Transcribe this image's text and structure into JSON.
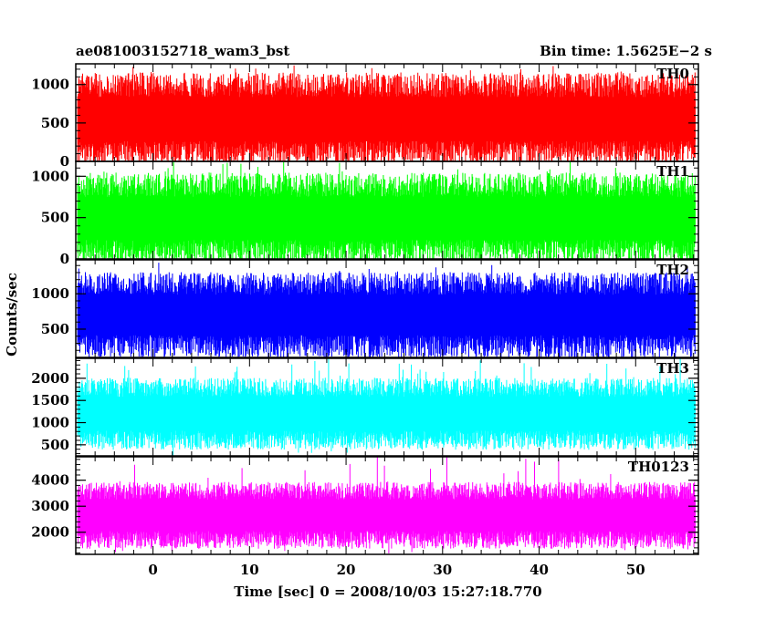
{
  "chart_data": {
    "type": "line",
    "title_left": "ae081003152718_wam3_bst",
    "title_right": "Bin time: 1.5625E−2 s",
    "xlabel": "Time [sec] 0 = 2008/10/03 15:27:18.770",
    "ylabel": "Counts/sec",
    "xlim": [
      -8,
      56.5
    ],
    "x_data_range": [
      -7.8,
      56.2
    ],
    "x_ticks": [
      0,
      10,
      20,
      30,
      40,
      50
    ],
    "x_tick_labels": [
      "0",
      "10",
      "20",
      "30",
      "40",
      "50"
    ],
    "grid": false,
    "panels": [
      {
        "name": "TH0",
        "color": "#ff0000",
        "ylim": [
          0,
          1270
        ],
        "y_ticks": [
          0,
          500,
          1000
        ],
        "y_tick_labels": [
          "0",
          "500",
          "1000"
        ],
        "typical_range": [
          100,
          1000
        ],
        "min": 0,
        "max": 1270,
        "median": 560
      },
      {
        "name": "TH1",
        "color": "#00ff00",
        "ylim": [
          0,
          1180
        ],
        "y_ticks": [
          0,
          500,
          1000
        ],
        "y_tick_labels": [
          "0",
          "500",
          "1000"
        ],
        "typical_range": [
          80,
          900
        ],
        "min": 0,
        "max": 1180,
        "median": 480
      },
      {
        "name": "TH2",
        "color": "#0000ff",
        "ylim": [
          100,
          1480
        ],
        "y_ticks": [
          500,
          1000
        ],
        "y_tick_labels": [
          "500",
          "1000"
        ],
        "typical_range": [
          250,
          1150
        ],
        "min": 100,
        "max": 1480,
        "median": 700
      },
      {
        "name": "TH3",
        "color": "#00ffff",
        "ylim": [
          250,
          2450
        ],
        "y_ticks": [
          500,
          1000,
          1500,
          2000
        ],
        "y_tick_labels": [
          "500",
          "1000",
          "1500",
          "2000"
        ],
        "typical_range": [
          600,
          1800
        ],
        "min": 250,
        "max": 2450,
        "median": 1200
      },
      {
        "name": "TH0123",
        "color": "#ff00ff",
        "ylim": [
          1150,
          4900
        ],
        "y_ticks": [
          2000,
          3000,
          4000
        ],
        "y_tick_labels": [
          "2000",
          "3000",
          "4000"
        ],
        "typical_range": [
          1700,
          3600
        ],
        "min": 1150,
        "max": 4900,
        "median": 2650
      }
    ]
  }
}
